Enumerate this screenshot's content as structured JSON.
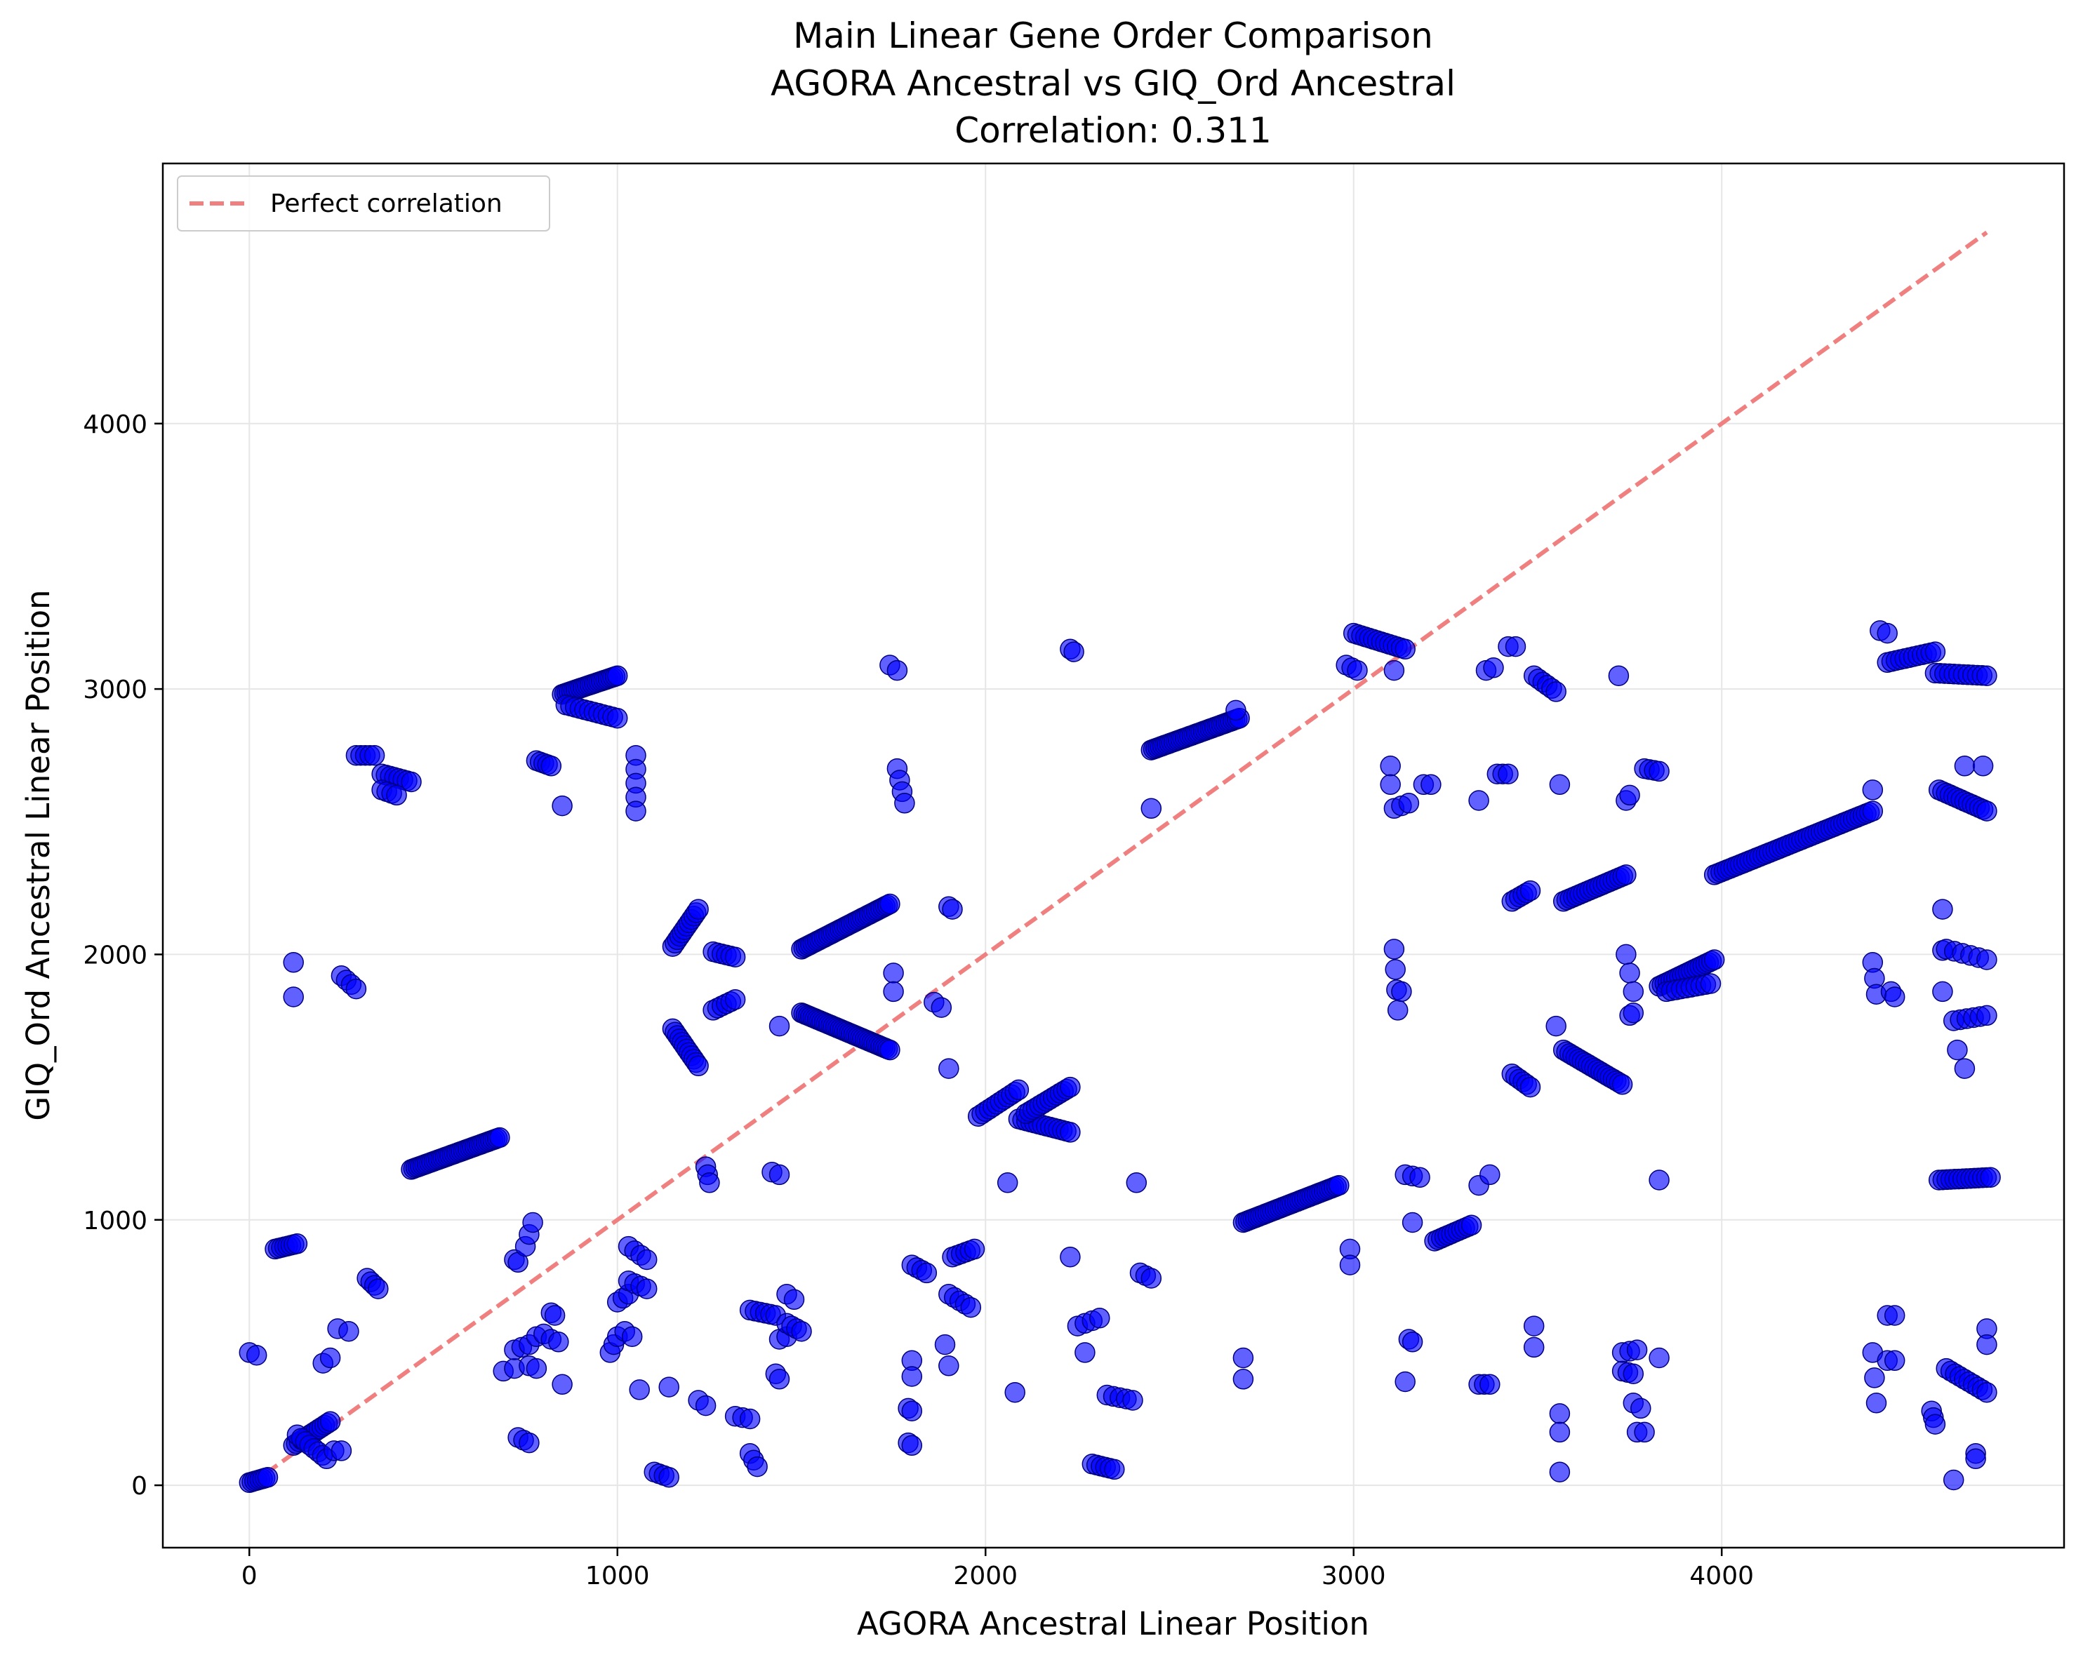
{
  "chart_data": {
    "type": "scatter",
    "title_lines": [
      "Main Linear Gene Order Comparison",
      "AGORA Ancestral vs GIQ_Ord Ancestral",
      "Correlation: 0.311"
    ],
    "xlabel": "AGORA Ancestral Linear Position",
    "ylabel": "GIQ_Ord Ancestral Linear Position",
    "xlim": [
      -235,
      4930
    ],
    "ylim": [
      -235,
      4980
    ],
    "xticks": [
      0,
      1000,
      2000,
      3000,
      4000
    ],
    "yticks": [
      0,
      1000,
      2000,
      3000,
      4000
    ],
    "grid": true,
    "legend": {
      "placement": "top-left",
      "entries": [
        "Perfect correlation"
      ]
    },
    "colors": {
      "points": "#0000ff",
      "point_edge": "#000080",
      "reference_line": "#f08080",
      "grid": "#e6e6e6"
    },
    "reference_line": {
      "name": "Perfect correlation",
      "style": "dashed",
      "x": [
        0,
        4720
      ],
      "y": [
        0,
        4720
      ]
    },
    "segments": [
      [
        0,
        10,
        50,
        30,
        8
      ],
      [
        120,
        150,
        220,
        240,
        14
      ],
      [
        130,
        190,
        210,
        100,
        8
      ],
      [
        230,
        130,
        250,
        130,
        2
      ],
      [
        0,
        500,
        20,
        490,
        2
      ],
      [
        70,
        890,
        130,
        910,
        8
      ],
      [
        120,
        1970,
        120,
        1840,
        2
      ],
      [
        250,
        1920,
        290,
        1870,
        4
      ],
      [
        290,
        2750,
        340,
        2750,
        5
      ],
      [
        360,
        2680,
        440,
        2650,
        8
      ],
      [
        360,
        2620,
        400,
        2600,
        4
      ],
      [
        200,
        460,
        220,
        480,
        2
      ],
      [
        240,
        590,
        270,
        580,
        2
      ],
      [
        320,
        780,
        350,
        740,
        4
      ],
      [
        440,
        1190,
        680,
        1310,
        40
      ],
      [
        690,
        430,
        720,
        440,
        2
      ],
      [
        720,
        510,
        760,
        530,
        3
      ],
      [
        720,
        850,
        730,
        840,
        2
      ],
      [
        750,
        900,
        770,
        990,
        3
      ],
      [
        730,
        180,
        760,
        160,
        3
      ],
      [
        760,
        450,
        780,
        440,
        2
      ],
      [
        780,
        560,
        800,
        570,
        2
      ],
      [
        780,
        2730,
        820,
        2710,
        5
      ],
      [
        820,
        650,
        830,
        640,
        2
      ],
      [
        820,
        550,
        840,
        540,
        2
      ],
      [
        850,
        380,
        850,
        370,
        1
      ],
      [
        850,
        2980,
        1000,
        3050,
        25
      ],
      [
        860,
        2940,
        1000,
        2890,
        12
      ],
      [
        850,
        2560,
        860,
        2560,
        1
      ],
      [
        980,
        500,
        1000,
        560,
        3
      ],
      [
        1000,
        690,
        1030,
        720,
        3
      ],
      [
        1020,
        580,
        1040,
        560,
        2
      ],
      [
        1030,
        900,
        1080,
        850,
        4
      ],
      [
        1030,
        770,
        1080,
        740,
        4
      ],
      [
        1060,
        360,
        1070,
        370,
        1
      ],
      [
        1050,
        2750,
        1050,
        2540,
        5
      ],
      [
        1100,
        50,
        1140,
        30,
        4
      ],
      [
        1140,
        370,
        1150,
        360,
        1
      ],
      [
        1150,
        2030,
        1220,
        2170,
        12
      ],
      [
        1150,
        1720,
        1220,
        1580,
        12
      ],
      [
        1220,
        320,
        1240,
        300,
        2
      ],
      [
        1240,
        1200,
        1250,
        1140,
        3
      ],
      [
        1260,
        2010,
        1320,
        1990,
        6
      ],
      [
        1260,
        1790,
        1320,
        1830,
        6
      ],
      [
        1320,
        260,
        1360,
        250,
        3
      ],
      [
        1360,
        120,
        1380,
        70,
        3
      ],
      [
        1360,
        660,
        1430,
        640,
        6
      ],
      [
        1420,
        1180,
        1440,
        1170,
        2
      ],
      [
        1430,
        420,
        1440,
        400,
        2
      ],
      [
        1440,
        550,
        1460,
        560,
        2
      ],
      [
        1460,
        610,
        1500,
        580,
        4
      ],
      [
        1460,
        720,
        1480,
        700,
        2
      ],
      [
        1440,
        1730,
        1440,
        1730,
        1
      ],
      [
        1500,
        2020,
        1740,
        2190,
        40
      ],
      [
        1500,
        1780,
        1740,
        1640,
        40
      ],
      [
        1740,
        3090,
        1760,
        3070,
        2
      ],
      [
        1760,
        2700,
        1780,
        2570,
        4
      ],
      [
        1750,
        1930,
        1750,
        1860,
        2
      ],
      [
        1790,
        160,
        1800,
        150,
        2
      ],
      [
        1790,
        290,
        1800,
        280,
        2
      ],
      [
        1800,
        830,
        1840,
        800,
        4
      ],
      [
        1800,
        470,
        1800,
        410,
        2
      ],
      [
        1860,
        1820,
        1880,
        1800,
        2
      ],
      [
        1890,
        530,
        1900,
        450,
        2
      ],
      [
        1900,
        2180,
        1910,
        2170,
        2
      ],
      [
        1910,
        860,
        1970,
        890,
        6
      ],
      [
        1900,
        720,
        1960,
        670,
        5
      ],
      [
        1900,
        1570,
        1900,
        1560,
        1
      ],
      [
        1980,
        1390,
        2090,
        1490,
        12
      ],
      [
        2080,
        350,
        2080,
        360,
        1
      ],
      [
        2060,
        1140,
        2060,
        1140,
        1
      ],
      [
        2090,
        1380,
        2230,
        1330,
        14
      ],
      [
        2110,
        1400,
        2230,
        1500,
        14
      ],
      [
        2230,
        3150,
        2240,
        3140,
        2
      ],
      [
        2230,
        860,
        2230,
        860,
        1
      ],
      [
        2250,
        600,
        2310,
        630,
        4
      ],
      [
        2270,
        500,
        2270,
        520,
        1
      ],
      [
        2290,
        80,
        2350,
        60,
        6
      ],
      [
        2330,
        340,
        2400,
        320,
        5
      ],
      [
        2410,
        1140,
        2410,
        1140,
        1
      ],
      [
        2420,
        800,
        2450,
        780,
        3
      ],
      [
        2450,
        2550,
        2450,
        2540,
        1
      ],
      [
        2450,
        2770,
        2690,
        2890,
        40
      ],
      [
        2680,
        2920,
        2680,
        2920,
        1
      ],
      [
        2700,
        480,
        2700,
        400,
        2
      ],
      [
        2700,
        990,
        2960,
        1130,
        40
      ],
      [
        2980,
        3090,
        3010,
        3070,
        3
      ],
      [
        2990,
        890,
        2990,
        830,
        2
      ],
      [
        3000,
        3210,
        3140,
        3150,
        14
      ],
      [
        3110,
        3070,
        3110,
        3070,
        1
      ],
      [
        3100,
        2710,
        3100,
        2640,
        2
      ],
      [
        3110,
        2550,
        3150,
        2570,
        3
      ],
      [
        3110,
        2020,
        3120,
        1790,
        4
      ],
      [
        3130,
        1860,
        3140,
        1860,
        1
      ],
      [
        3140,
        1170,
        3180,
        1160,
        3
      ],
      [
        3140,
        390,
        3140,
        380,
        1
      ],
      [
        3150,
        550,
        3160,
        540,
        2
      ],
      [
        3160,
        990,
        3160,
        980,
        1
      ],
      [
        3190,
        2640,
        3210,
        2640,
        2
      ],
      [
        3220,
        920,
        3320,
        980,
        12
      ],
      [
        3340,
        380,
        3370,
        380,
        3
      ],
      [
        3340,
        1130,
        3340,
        1130,
        1
      ],
      [
        3360,
        3070,
        3380,
        3080,
        2
      ],
      [
        3340,
        2580,
        3350,
        2580,
        1
      ],
      [
        3370,
        1170,
        3370,
        1170,
        1
      ],
      [
        3390,
        2680,
        3420,
        2680,
        3
      ],
      [
        3420,
        3160,
        3440,
        3160,
        2
      ],
      [
        3430,
        1550,
        3480,
        1500,
        6
      ],
      [
        3430,
        2200,
        3480,
        2240,
        6
      ],
      [
        3490,
        600,
        3490,
        520,
        2
      ],
      [
        3490,
        3050,
        3550,
        2990,
        6
      ],
      [
        3550,
        1730,
        3550,
        1730,
        1
      ],
      [
        3560,
        270,
        3560,
        200,
        2
      ],
      [
        3560,
        50,
        3560,
        50,
        1
      ],
      [
        3560,
        2640,
        3560,
        2640,
        1
      ],
      [
        3570,
        2200,
        3740,
        2300,
        20
      ],
      [
        3570,
        1640,
        3730,
        1510,
        20
      ],
      [
        3720,
        3050,
        3720,
        3050,
        1
      ],
      [
        3730,
        500,
        3770,
        510,
        3
      ],
      [
        3730,
        430,
        3760,
        420,
        3
      ],
      [
        3740,
        2580,
        3750,
        2600,
        2
      ],
      [
        3740,
        2000,
        3760,
        1860,
        3
      ],
      [
        3750,
        1770,
        3760,
        1780,
        2
      ],
      [
        3760,
        310,
        3780,
        290,
        2
      ],
      [
        3770,
        200,
        3790,
        200,
        2
      ],
      [
        3790,
        2700,
        3830,
        2690,
        4
      ],
      [
        3830,
        480,
        3830,
        480,
        1
      ],
      [
        3830,
        1150,
        3830,
        1150,
        1
      ],
      [
        3830,
        1880,
        3980,
        1980,
        20
      ],
      [
        3850,
        1860,
        3970,
        1890,
        10
      ],
      [
        3980,
        2300,
        4410,
        2540,
        50
      ],
      [
        4410,
        2620,
        4410,
        2620,
        1
      ],
      [
        4410,
        1970,
        4420,
        1850,
        3
      ],
      [
        4410,
        500,
        4420,
        310,
        3
      ],
      [
        4430,
        3220,
        4450,
        3210,
        2
      ],
      [
        4450,
        3100,
        4580,
        3140,
        12
      ],
      [
        4450,
        640,
        4470,
        640,
        2
      ],
      [
        4450,
        470,
        4470,
        470,
        2
      ],
      [
        4460,
        1860,
        4470,
        1840,
        2
      ],
      [
        4570,
        280,
        4580,
        230,
        3
      ],
      [
        4580,
        3060,
        4720,
        3050,
        12
      ],
      [
        4590,
        2620,
        4720,
        2540,
        14
      ],
      [
        4590,
        1150,
        4730,
        1160,
        14
      ],
      [
        4600,
        2170,
        4600,
        1860,
        3
      ],
      [
        4610,
        2020,
        4720,
        1980,
        6
      ],
      [
        4610,
        440,
        4720,
        350,
        10
      ],
      [
        4630,
        1750,
        4720,
        1770,
        6
      ],
      [
        4630,
        20,
        4640,
        20,
        1
      ],
      [
        4640,
        1640,
        4660,
        1570,
        2
      ],
      [
        4660,
        2710,
        4710,
        2710,
        2
      ],
      [
        4690,
        120,
        4690,
        100,
        2
      ],
      [
        4720,
        590,
        4720,
        530,
        2
      ]
    ]
  }
}
